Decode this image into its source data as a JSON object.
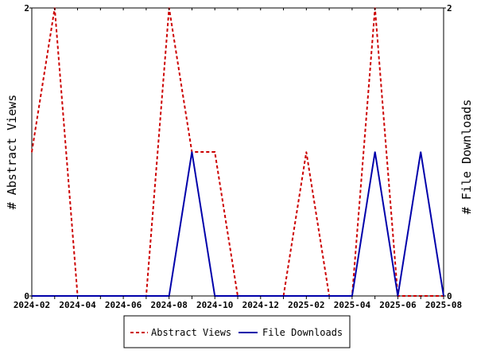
{
  "chart_data": {
    "type": "line",
    "xlabel": "",
    "ylabel_left": "# Abstract Views",
    "ylabel_right": "# File Downloads",
    "x_ticks": [
      "2024-02",
      "2024-04",
      "2024-06",
      "2024-08",
      "2024-10",
      "2024-12",
      "2025-02",
      "2025-04",
      "2025-06",
      "2025-08"
    ],
    "x": [
      "2024-02",
      "2024-03",
      "2024-04",
      "2024-05",
      "2024-06",
      "2024-07",
      "2024-08",
      "2024-09",
      "2024-10",
      "2024-11",
      "2024-12",
      "2025-01",
      "2025-02",
      "2025-03",
      "2025-04",
      "2025-05",
      "2025-06",
      "2025-07",
      "2025-08"
    ],
    "ylim_left": [
      0,
      2
    ],
    "ylim_right": [
      0,
      2
    ],
    "y_ticks_left": [
      "0",
      "2"
    ],
    "y_ticks_right": [
      "0",
      "2"
    ],
    "grid": false,
    "legend_position": "bottom",
    "series": [
      {
        "name": "Abstract Views",
        "axis": "left",
        "color": "#cc0000",
        "style": "dashed",
        "values": [
          1,
          2,
          0,
          0,
          0,
          0,
          2,
          1,
          1,
          0,
          0,
          0,
          1,
          0,
          0,
          2,
          0,
          0,
          0
        ]
      },
      {
        "name": "File Downloads",
        "axis": "right",
        "color": "#0000aa",
        "style": "solid",
        "values": [
          0,
          0,
          0,
          0,
          0,
          0,
          0,
          1,
          0,
          0,
          0,
          0,
          0,
          0,
          0,
          1,
          0,
          1,
          0
        ]
      }
    ]
  }
}
